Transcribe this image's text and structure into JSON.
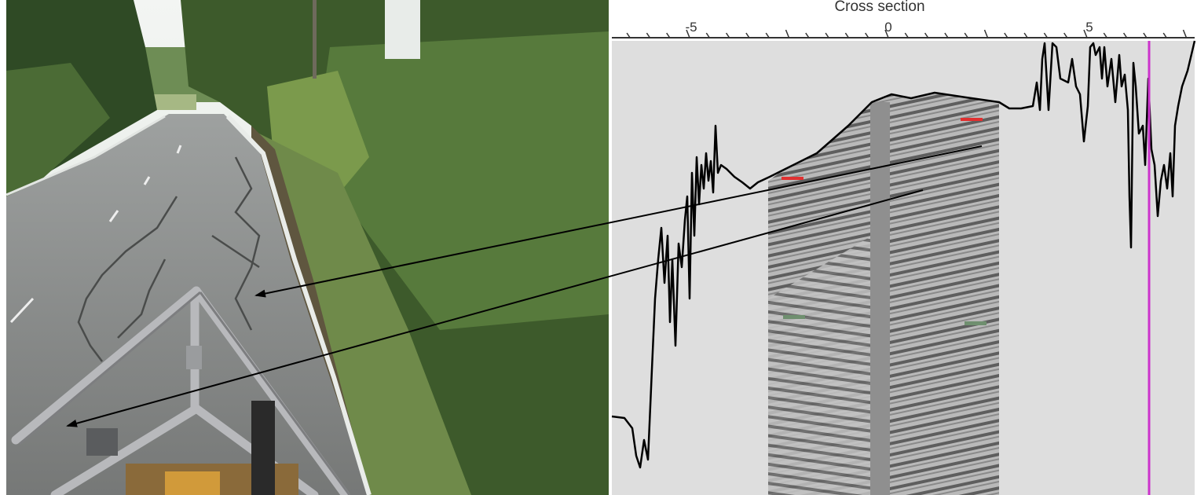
{
  "panel_title": "Cross section",
  "x_ticks": [
    "-5",
    "0",
    "5"
  ],
  "colors": {
    "trace": "#000000",
    "marker_vertical": "#cc33cc",
    "pick_red": "#e03030",
    "pick_green": "#6f8f6f",
    "profile_bg": "#dcdcdc",
    "radargram_bg": "#a0a0a0"
  },
  "photo": {
    "description_icon": "road-photo-with-gpr-antenna-frame"
  }
}
